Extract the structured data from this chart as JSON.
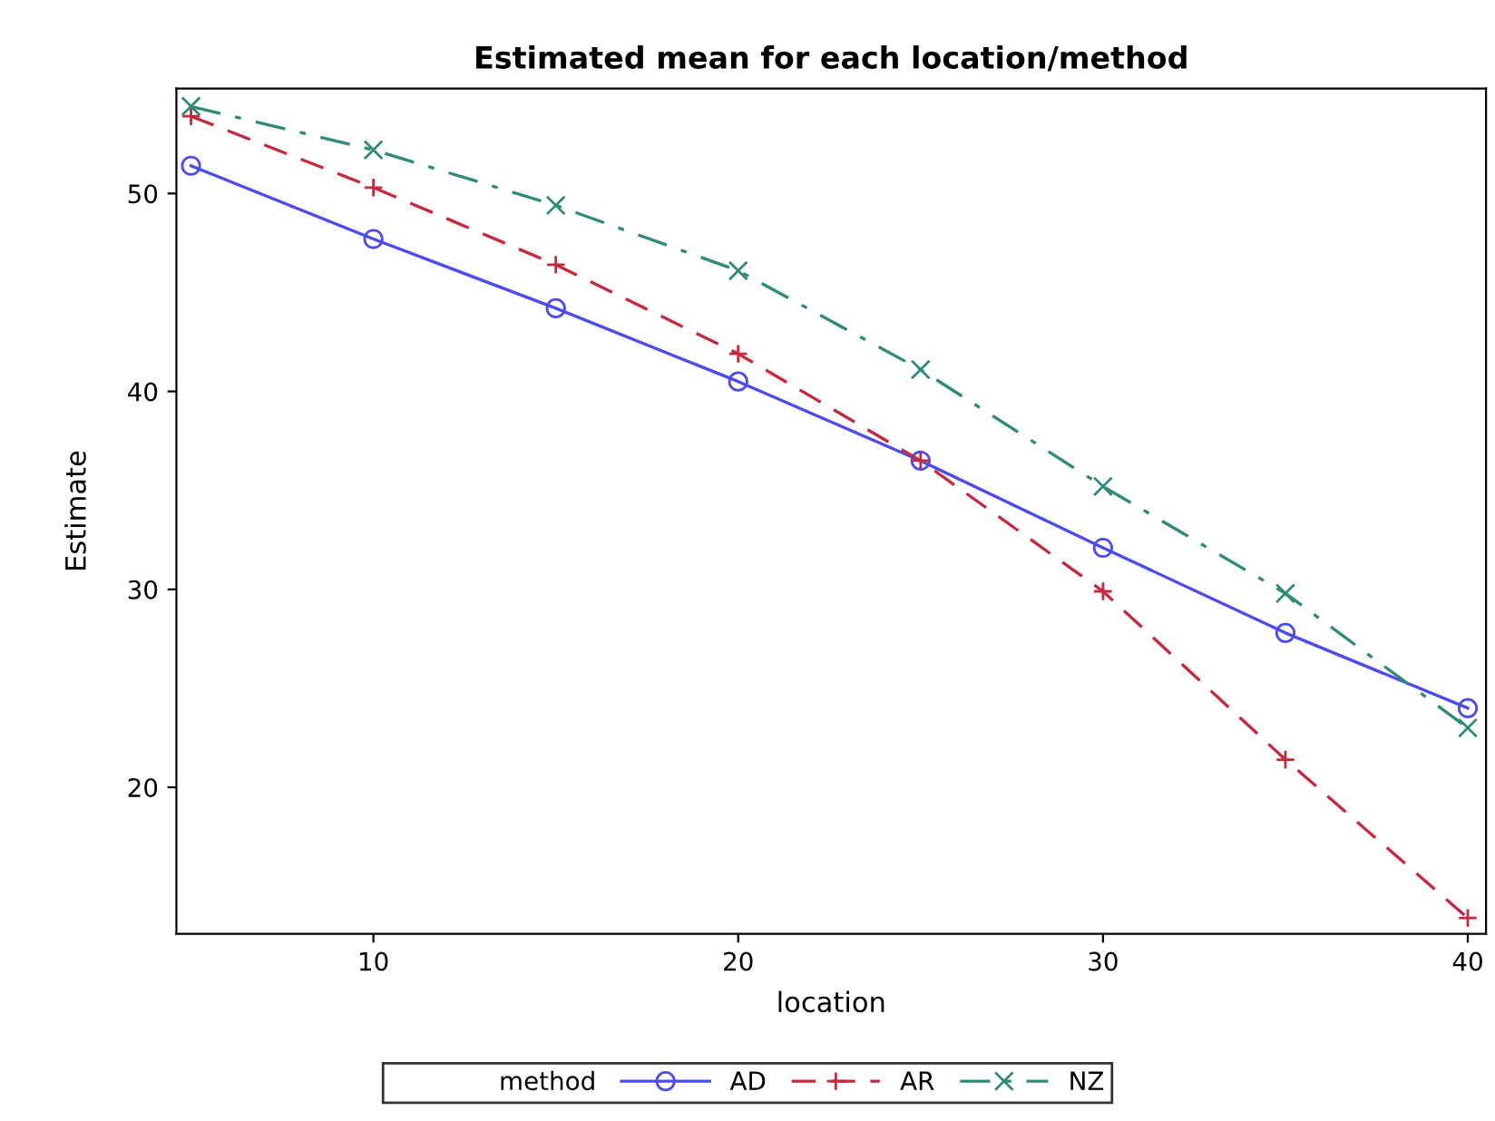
{
  "chart_data": {
    "type": "line",
    "title": "Estimated mean for each location/method",
    "xlabel": "location",
    "ylabel": "Estimate",
    "legend_title": "method",
    "x": [
      5,
      10,
      15,
      20,
      25,
      30,
      35,
      40
    ],
    "series": [
      {
        "name": "AD",
        "color": "#4b4bf0",
        "marker": "circle",
        "line_style": "solid",
        "values": [
          51.4,
          47.7,
          44.2,
          40.5,
          36.5,
          32.1,
          27.8,
          24.0
        ]
      },
      {
        "name": "AR",
        "color": "#c8283c",
        "marker": "cross",
        "line_style": "dashed",
        "values": [
          53.9,
          50.3,
          46.4,
          41.9,
          36.5,
          29.9,
          21.4,
          13.4
        ]
      },
      {
        "name": "NZ",
        "color": "#2e8b7a",
        "marker": "x",
        "line_style": "dashdot",
        "values": [
          54.4,
          52.2,
          49.4,
          46.1,
          41.1,
          35.2,
          29.8,
          23.0
        ]
      }
    ],
    "xlim": [
      4.6,
      40.5
    ],
    "ylim": [
      12.6,
      55.3
    ],
    "xticks": [
      10,
      20,
      30,
      40
    ],
    "yticks": [
      20,
      30,
      40,
      50
    ],
    "grid": false,
    "legend": "bottom"
  }
}
